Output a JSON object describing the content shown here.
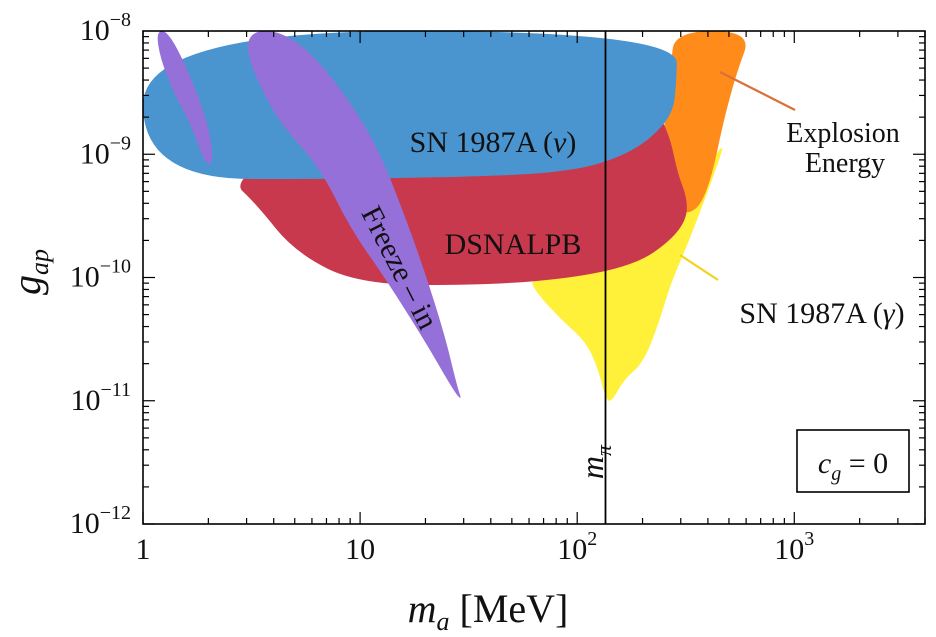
{
  "chart_data": {
    "type": "area",
    "xlabel": "m_a [MeV]",
    "ylabel": "g_ap",
    "x_scale": "log",
    "y_scale": "log",
    "xlim": [
      1,
      4000
    ],
    "ylim": [
      1e-12,
      1e-08
    ],
    "grid": false,
    "x_ticks": [
      {
        "value": 1,
        "label": "1"
      },
      {
        "value": 10,
        "label": "10"
      },
      {
        "value": 100,
        "label": "10^2"
      },
      {
        "value": 1000,
        "label": "10^3"
      }
    ],
    "y_ticks": [
      {
        "value": 1e-12,
        "label": "10^-12"
      },
      {
        "value": 1e-11,
        "label": "10^-11"
      },
      {
        "value": 1e-10,
        "label": "10^-10"
      },
      {
        "value": 1e-09,
        "label": "10^-9"
      },
      {
        "value": 1e-08,
        "label": "10^-8"
      }
    ],
    "regions": [
      {
        "name": "SN 1987A (γ)",
        "color": "#FFF03A",
        "points": [
          [
            110,
            2e-10
          ],
          [
            200,
            3e-10
          ],
          [
            330,
            5e-10
          ],
          [
            400,
            8e-10
          ],
          [
            470,
            1.2e-09
          ],
          [
            460,
            1e-09
          ],
          [
            400,
            5e-10
          ],
          [
            320,
            1.8e-10
          ],
          [
            270,
            9e-11
          ],
          [
            235,
            4e-11
          ],
          [
            200,
            2e-11
          ],
          [
            165,
            1.5e-11
          ],
          [
            145,
            1e-11
          ],
          [
            136,
            1e-11
          ],
          [
            125,
            1.8e-11
          ],
          [
            110,
            3e-11
          ],
          [
            85,
            4.5e-11
          ],
          [
            65,
            7.5e-11
          ],
          [
            60,
            1e-10
          ]
        ]
      },
      {
        "name": "Explosion Energy",
        "color": "#FF8C1A",
        "points": [
          [
            280,
            1e-08
          ],
          [
            640,
            1e-08
          ],
          [
            540,
            4.5e-09
          ],
          [
            470,
            1.8e-09
          ],
          [
            420,
            7e-10
          ],
          [
            375,
            4e-10
          ],
          [
            330,
            3.3e-10
          ],
          [
            290,
            3.5e-10
          ],
          [
            250,
            4e-10
          ],
          [
            250,
            2e-09
          ],
          [
            270,
            5e-09
          ]
        ]
      },
      {
        "name": "DSNALPB",
        "color": "#C9394E",
        "points": [
          [
            2.5,
            6.3e-10
          ],
          [
            3.3,
            4e-10
          ],
          [
            5.0,
            1.6e-10
          ],
          [
            10,
            8.7e-11
          ],
          [
            40,
            8.7e-11
          ],
          [
            100,
            1e-10
          ],
          [
            190,
            1.3e-10
          ],
          [
            270,
            2e-10
          ],
          [
            320,
            3e-10
          ],
          [
            320,
            4.5e-10
          ],
          [
            290,
            7e-10
          ],
          [
            270,
            1.3e-09
          ],
          [
            240,
            2.1e-09
          ],
          [
            200,
            2.4e-09
          ],
          [
            150,
            2.5e-09
          ],
          [
            10,
            2.5e-09
          ]
        ]
      },
      {
        "name": "SN 1987A (ν)",
        "color": "#4A95D0",
        "points": [
          [
            1,
            1e-08
          ],
          [
            290,
            1e-08
          ],
          [
            285,
            3e-09
          ],
          [
            270,
            2.1e-09
          ],
          [
            240,
            1.6e-09
          ],
          [
            200,
            1.2e-09
          ],
          [
            150,
            9.2e-10
          ],
          [
            100,
            7.5e-10
          ],
          [
            50,
            6.7e-10
          ],
          [
            10,
            6.3e-10
          ],
          [
            1,
            6.3e-10
          ]
        ]
      },
      {
        "name": "Freeze – in",
        "color": "#9570D8",
        "points": [
          [
            5.0,
            1e-08
          ],
          [
            11,
            1.7e-09
          ],
          [
            17,
            2.5e-10
          ],
          [
            24,
            4e-11
          ],
          [
            28,
            1.3e-11
          ],
          [
            29.5,
            1e-11
          ],
          [
            27,
            1.2e-11
          ],
          [
            20,
            3e-11
          ],
          [
            13,
            1e-10
          ],
          [
            9,
            2.5e-10
          ],
          [
            6.5,
            8e-10
          ],
          [
            4.0,
            2e-09
          ],
          [
            2.7,
            1e-08
          ]
        ]
      },
      {
        "name": "",
        "color": "#9570D8",
        "points": [
          [
            1.15,
            1e-08
          ],
          [
            1.3,
            1e-08
          ],
          [
            1.6,
            5e-09
          ],
          [
            1.95,
            2e-09
          ],
          [
            2.1,
            1.05e-09
          ],
          [
            2.05,
            8e-10
          ],
          [
            1.9,
            9e-10
          ],
          [
            1.65,
            1.8e-09
          ],
          [
            1.4,
            3e-09
          ],
          [
            1.2,
            6e-09
          ]
        ]
      }
    ],
    "vertical_line": {
      "x": 135,
      "label": "m_π"
    },
    "annotations": [
      {
        "text": "SN 1987A (ν)"
      },
      {
        "text": "DSNALPB"
      },
      {
        "text": "Freeze – in"
      },
      {
        "text": "Explosion Energy"
      },
      {
        "text": "SN 1987A (γ)"
      },
      {
        "text": "c_g = 0"
      }
    ]
  }
}
